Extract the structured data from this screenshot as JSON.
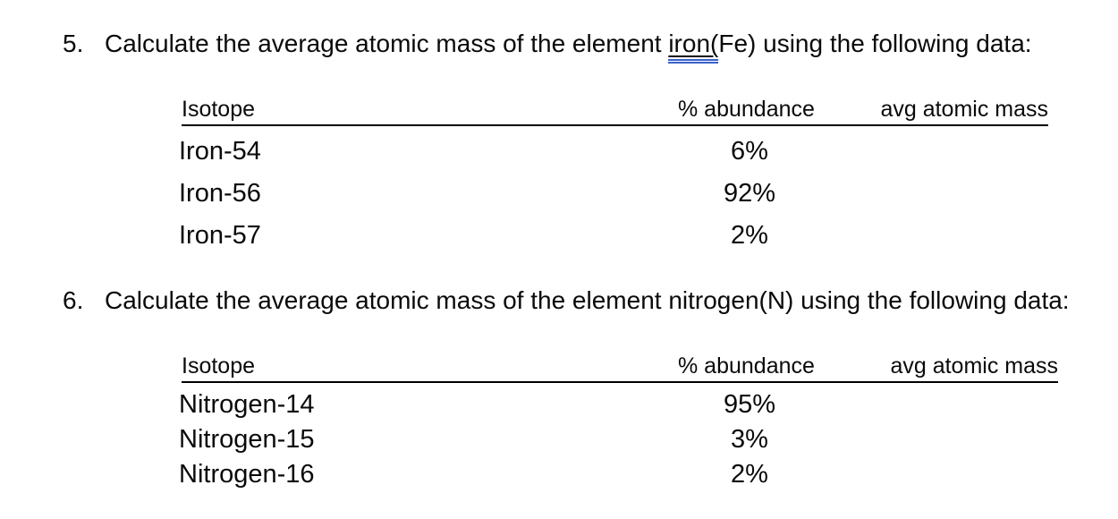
{
  "page": {
    "background_color": "#ffffff",
    "text_color": "#0a0a0a"
  },
  "grammar_check": {
    "style": "blue-double-underline",
    "underline_color": "#3a62cc"
  },
  "questions": [
    {
      "number": "5.",
      "text_before": "Calculate the average atomic mass of the element ",
      "grammar_flagged": "iron(",
      "text_after": "Fe) using the following data:",
      "table": {
        "headers": {
          "isotope": "Isotope",
          "abundance": "% abundance",
          "avg_mass": "avg atomic mass"
        },
        "rows": [
          {
            "isotope": "Iron-54",
            "abundance": "6%",
            "avg_mass": ""
          },
          {
            "isotope": "Iron-56",
            "abundance": "92%",
            "avg_mass": ""
          },
          {
            "isotope": "Iron-57",
            "abundance": "2%",
            "avg_mass": ""
          }
        ]
      }
    },
    {
      "number": "6.",
      "text_before": "Calculate the average atomic mass of the element nitrogen(N) using the following data:",
      "grammar_flagged": "",
      "text_after": "",
      "table": {
        "headers": {
          "isotope": "Isotope",
          "abundance": "% abundance",
          "avg_mass": "avg atomic mass"
        },
        "rows": [
          {
            "isotope": "Nitrogen-14",
            "abundance": "95%",
            "avg_mass": ""
          },
          {
            "isotope": "Nitrogen-15",
            "abundance": "3%",
            "avg_mass": ""
          },
          {
            "isotope": "Nitrogen-16",
            "abundance": "2%",
            "avg_mass": ""
          }
        ]
      }
    }
  ]
}
